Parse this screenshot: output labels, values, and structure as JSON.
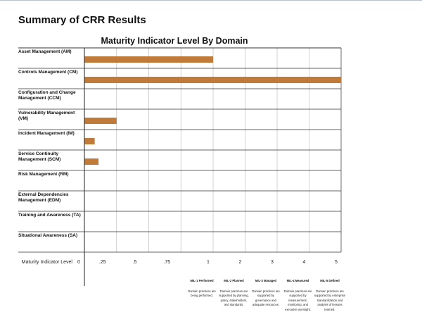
{
  "page": {
    "title": "Summary of CRR Results"
  },
  "chart_data": {
    "type": "bar",
    "orientation": "horizontal",
    "title": "Maturity Indicator Level By Domain",
    "xlabel": "Maturity Indicator Level",
    "bar_color": "#c07a3a",
    "categories": [
      "Asset Management (AM)",
      "Controls Management (CM)",
      "Configuration and Change Management (CCM)",
      "Vulnerability Management (VM)",
      "Incident Management (IM)",
      "Service Continuity Management (SCM)",
      "Risk Management (RM)",
      "External Dependencies Management (EDM)",
      "Training and Awareness (TA)",
      "Situational Awareness (SA)"
    ],
    "values": [
      1,
      5,
      0,
      0.25,
      0.08,
      0.11,
      0,
      0,
      0,
      0
    ],
    "ticks": [
      0,
      0.25,
      0.5,
      0.75,
      1,
      2,
      3,
      4,
      5
    ],
    "tick_labels": [
      "0",
      ".25",
      ".5",
      ".75",
      "1",
      "2",
      "3",
      "4",
      "5"
    ],
    "xlim": [
      0,
      5
    ],
    "grid": true,
    "levels": [
      {
        "name": "MIL-1 Performed",
        "description": "Domain practices are being performed."
      },
      {
        "name": "MIL-2 Planned",
        "description": "Domain practices are supported by planning, policy, stakeholders, and standards."
      },
      {
        "name": "MIL-3 Managed",
        "description": "Domain practices are supported by governance and adequate resources."
      },
      {
        "name": "MIL-4 Measured",
        "description": "Domain practices are supported by measurement, monitoring, and executive oversight."
      },
      {
        "name": "MIL-5 Defined",
        "description": "Domain practices are supported by enterprise standardization and analysis of lessons learned."
      }
    ]
  }
}
